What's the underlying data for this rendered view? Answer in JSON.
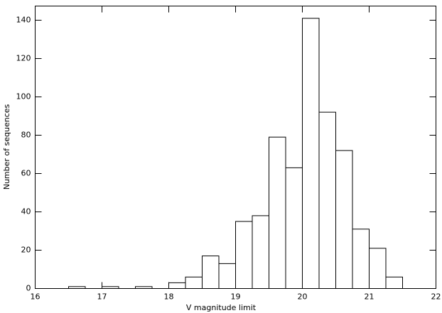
{
  "chart_data": {
    "type": "histogram",
    "xlabel": "V magnitude limit",
    "ylabel": "Number of sequences",
    "bins": [
      16.5,
      16.75,
      17,
      17.25,
      17.5,
      17.75,
      18,
      18.25,
      18.5,
      18.75,
      19,
      19.25,
      19.5,
      19.75,
      20,
      20.25,
      20.5,
      20.75,
      21,
      21.25,
      21.5
    ],
    "values": [
      1,
      0,
      1,
      0,
      1,
      0,
      3,
      6,
      17,
      13,
      35,
      38,
      79,
      63,
      141,
      92,
      72,
      31,
      21,
      6
    ],
    "color": "#ffffff",
    "xlim": [
      16,
      22
    ],
    "xticks": [
      16,
      17,
      18,
      19,
      20,
      21,
      22
    ],
    "ylim": [
      0,
      147.4
    ],
    "yticks": [
      0,
      20,
      40,
      60,
      80,
      100,
      120,
      140
    ]
  }
}
